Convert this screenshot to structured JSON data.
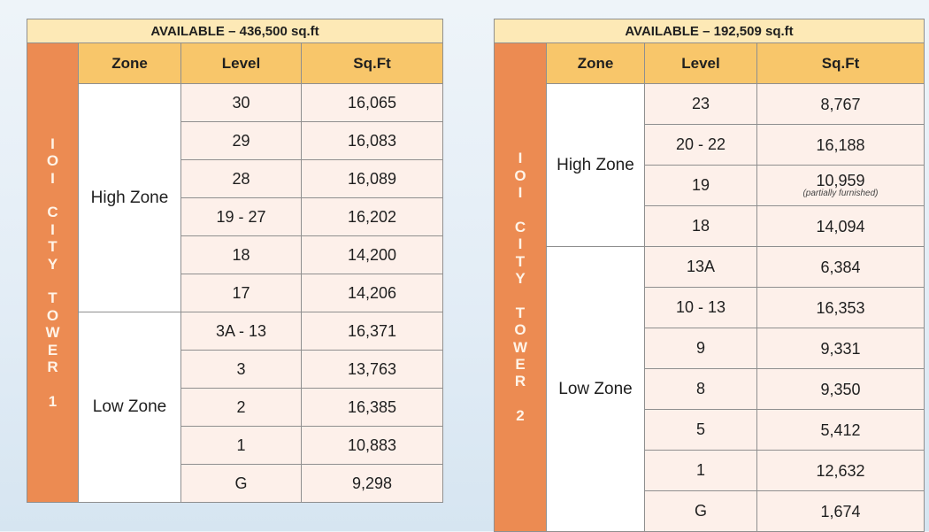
{
  "tower1": {
    "available": "AVAILABLE – 436,500 sq.ft",
    "side_letters": [
      "I",
      "O",
      "I",
      "",
      "C",
      "I",
      "T",
      "Y",
      "",
      "T",
      "O",
      "W",
      "E",
      "R",
      "",
      "1"
    ],
    "headers": {
      "zone": "Zone",
      "level": "Level",
      "sqft": "Sq.Ft"
    },
    "zones": [
      {
        "name": "High Zone",
        "rows": [
          {
            "level": "30",
            "sqft": "16,065"
          },
          {
            "level": "29",
            "sqft": "16,083"
          },
          {
            "level": "28",
            "sqft": "16,089"
          },
          {
            "level": "19 - 27",
            "sqft": "16,202"
          },
          {
            "level": "18",
            "sqft": "14,200"
          },
          {
            "level": "17",
            "sqft": "14,206"
          }
        ]
      },
      {
        "name": "Low Zone",
        "rows": [
          {
            "level": "3A - 13",
            "sqft": "16,371"
          },
          {
            "level": "3",
            "sqft": "13,763"
          },
          {
            "level": "2",
            "sqft": "16,385"
          },
          {
            "level": "1",
            "sqft": "10,883"
          },
          {
            "level": "G",
            "sqft": "9,298"
          }
        ]
      }
    ]
  },
  "tower2": {
    "available": "AVAILABLE – 192,509 sq.ft",
    "side_letters": [
      "I",
      "O",
      "I",
      "",
      "C",
      "I",
      "T",
      "Y",
      "",
      "T",
      "O",
      "W",
      "E",
      "R",
      "",
      "2"
    ],
    "headers": {
      "zone": "Zone",
      "level": "Level",
      "sqft": "Sq.Ft"
    },
    "zones": [
      {
        "name": "High Zone",
        "rows": [
          {
            "level": "23",
            "sqft": "8,767"
          },
          {
            "level": "20 - 22",
            "sqft": "16,188"
          },
          {
            "level": "19",
            "sqft": "10,959",
            "note": "(partially furnished)"
          },
          {
            "level": "18",
            "sqft": "14,094"
          }
        ]
      },
      {
        "name": "Low Zone",
        "rows": [
          {
            "level": "13A",
            "sqft": "6,384"
          },
          {
            "level": "10 - 13",
            "sqft": "16,353"
          },
          {
            "level": "9",
            "sqft": "9,331"
          },
          {
            "level": "8",
            "sqft": "9,350"
          },
          {
            "level": "5",
            "sqft": "5,412"
          },
          {
            "level": "1",
            "sqft": "12,632"
          },
          {
            "level": "G",
            "sqft": "1,674"
          }
        ]
      }
    ]
  }
}
